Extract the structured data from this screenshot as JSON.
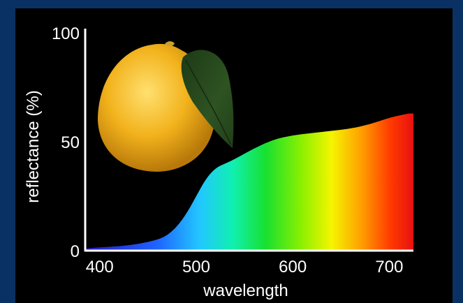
{
  "chart_data": {
    "type": "area",
    "xlabel": "wavelength",
    "ylabel": "reflectance (%)",
    "xlim": [
      385,
      725
    ],
    "ylim": [
      0,
      100
    ],
    "xticks": [
      400,
      500,
      600,
      700
    ],
    "yticks": [
      0,
      50,
      100
    ],
    "grid": false,
    "fill": "visible-spectrum gradient",
    "x": [
      385,
      400,
      420,
      440,
      460,
      470,
      480,
      490,
      500,
      510,
      520,
      530,
      540,
      560,
      580,
      600,
      620,
      640,
      660,
      680,
      700,
      710,
      720,
      725
    ],
    "values": [
      1,
      1.5,
      2,
      3,
      5,
      7,
      11,
      17,
      25,
      33,
      38,
      40,
      42,
      47,
      51,
      53,
      54,
      55,
      56,
      58,
      61,
      62,
      63,
      63
    ]
  },
  "illustration": {
    "subject": "lemon-with-leaf"
  },
  "colors": {
    "background": "#0a3163",
    "panel": "#000000",
    "axis": "#ffffff"
  }
}
